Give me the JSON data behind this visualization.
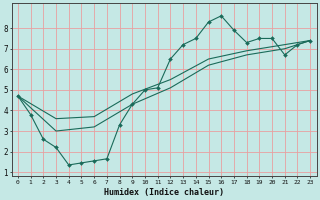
{
  "xlabel": "Humidex (Indice chaleur)",
  "background_color": "#c5e8e5",
  "grid_color": "#e8a0a0",
  "line_color": "#1a6b5a",
  "xlim": [
    -0.5,
    23.5
  ],
  "ylim": [
    0.8,
    9.2
  ],
  "xticks": [
    0,
    1,
    2,
    3,
    4,
    5,
    6,
    7,
    8,
    9,
    10,
    11,
    12,
    13,
    14,
    15,
    16,
    17,
    18,
    19,
    20,
    21,
    22,
    23
  ],
  "yticks": [
    1,
    2,
    3,
    4,
    5,
    6,
    7,
    8
  ],
  "line1_x": [
    0,
    1,
    2,
    3,
    4,
    5,
    6,
    7,
    8,
    9,
    10,
    11,
    12,
    13,
    14,
    15,
    16,
    17,
    18,
    19,
    20,
    21,
    22,
    23
  ],
  "line1_y": [
    4.7,
    3.8,
    2.6,
    2.2,
    1.35,
    1.45,
    1.55,
    1.65,
    3.3,
    4.3,
    5.0,
    5.1,
    6.5,
    7.2,
    7.5,
    8.3,
    8.6,
    7.9,
    7.3,
    7.5,
    7.5,
    6.7,
    7.2,
    7.4
  ],
  "line2_x": [
    0,
    23
  ],
  "line2_y": [
    4.7,
    7.4
  ],
  "line3_x": [
    0,
    23
  ],
  "line3_y": [
    4.7,
    7.4
  ],
  "trend1_x": [
    0,
    3,
    6,
    9,
    12,
    15,
    18,
    21,
    23
  ],
  "trend1_y": [
    4.7,
    3.6,
    3.7,
    4.8,
    5.5,
    6.5,
    6.9,
    7.2,
    7.4
  ],
  "trend2_x": [
    0,
    3,
    6,
    9,
    12,
    15,
    18,
    21,
    23
  ],
  "trend2_y": [
    4.7,
    3.0,
    3.2,
    4.3,
    5.1,
    6.2,
    6.7,
    7.0,
    7.4
  ],
  "figsize": [
    3.2,
    2.0
  ],
  "dpi": 100
}
